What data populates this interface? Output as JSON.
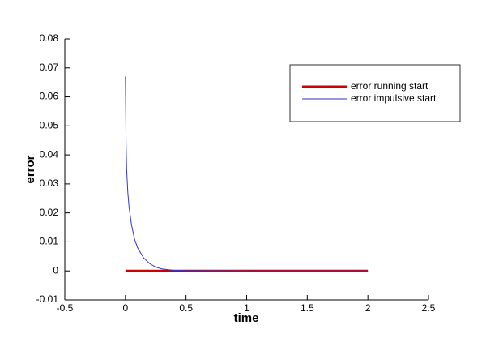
{
  "chart_data": {
    "type": "line",
    "x_label": "time",
    "y_label": "error",
    "xlim": [
      -0.5,
      2.5
    ],
    "xticks": [
      -0.5,
      0,
      0.5,
      1,
      1.5,
      2,
      2.5
    ],
    "ylim": [
      -0.01,
      0.08
    ],
    "yticks": [
      -0.01,
      0,
      0.01,
      0.02,
      0.03,
      0.04,
      0.05,
      0.06,
      0.07,
      0.08
    ],
    "grid": false,
    "legend_position": "upper right",
    "series": [
      {
        "name": "error running start",
        "color": "#cc0000",
        "width": 3,
        "x": [
          0,
          2
        ],
        "values": [
          0,
          0
        ]
      },
      {
        "name": "error impulsive start",
        "color": "#3333cc",
        "width": 1,
        "x": [
          0,
          0.005,
          0.01,
          0.02,
          0.03,
          0.05,
          0.075,
          0.1,
          0.15,
          0.2,
          0.25,
          0.3,
          0.4,
          0.5,
          1,
          1.5,
          2
        ],
        "values": [
          0.067,
          0.045,
          0.035,
          0.027,
          0.022,
          0.016,
          0.011,
          0.008,
          0.0045,
          0.0025,
          0.0013,
          0.0007,
          0.0002,
          0.0001,
          0,
          0,
          0
        ]
      }
    ]
  }
}
